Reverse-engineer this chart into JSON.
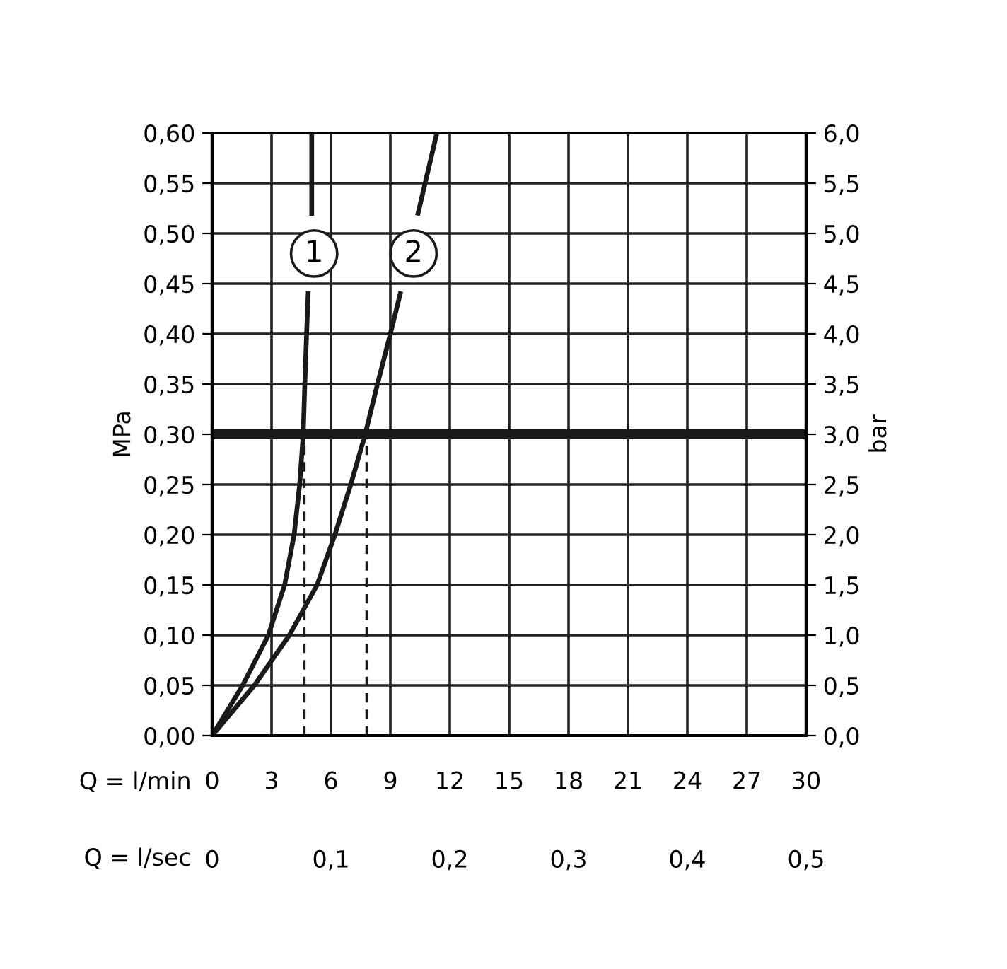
{
  "chart_data": {
    "type": "line",
    "x": [
      0,
      1.54,
      2.84,
      3.66,
      4.14,
      4.42,
      4.6,
      4.68,
      4.77,
      4.85,
      5.0,
      5.03,
      5.03
    ],
    "series": [
      {
        "name": null,
        "color": "#1a1a1a",
        "values": [
          0,
          0.05,
          0.1,
          0.15,
          0.2,
          0.25,
          0.3,
          0.35,
          0.4,
          0.44,
          null,
          0.52,
          0.6
        ]
      },
      {
        "name": null,
        "color": "#1a1a1a",
        "x": [
          0,
          2.13,
          3.9,
          5.3,
          6.2,
          7.0,
          7.73,
          8.35,
          9.0,
          9.5,
          10.0,
          10.4,
          11.35
        ],
        "values": [
          0,
          0.05,
          0.1,
          0.15,
          0.2,
          0.25,
          0.3,
          0.35,
          0.4,
          0.44,
          null,
          0.52,
          0.6
        ]
      }
    ],
    "xlabel": "Q = l/min",
    "x2label": "Q = l/sec",
    "ylabel": "MPa",
    "y2label": "bar",
    "xlim": [
      0,
      30
    ],
    "xticks": [
      0,
      3,
      6,
      9,
      12,
      15,
      18,
      21,
      24,
      27,
      30
    ],
    "x2lim": [
      0,
      0.5
    ],
    "x2ticks": [
      0,
      {
        "value": 0.1,
        "label": "0,1"
      },
      {
        "value": 0.2,
        "label": "0,2"
      },
      {
        "value": 0.3,
        "label": "0,3"
      },
      {
        "value": 0.4,
        "label": "0,4"
      },
      {
        "value": 0.5,
        "label": "0,5"
      }
    ],
    "ylim": [
      0,
      0.6
    ],
    "yticks": [
      {
        "value": 0,
        "label": "0,00"
      },
      {
        "value": 0.05,
        "label": "0,05"
      },
      {
        "value": 0.1,
        "label": "0,10"
      },
      {
        "value": 0.15,
        "label": "0,15"
      },
      {
        "value": 0.2,
        "label": "0,20"
      },
      {
        "value": 0.25,
        "label": "0,25"
      },
      {
        "value": 0.3,
        "label": "0,30"
      },
      {
        "value": 0.35,
        "label": "0,35"
      },
      {
        "value": 0.4,
        "label": "0,40"
      },
      {
        "value": 0.45,
        "label": "0,45"
      },
      {
        "value": 0.5,
        "label": "0,50"
      },
      {
        "value": 0.55,
        "label": "0,55"
      },
      {
        "value": 0.6,
        "label": "0,60"
      }
    ],
    "y2lim": [
      0,
      6
    ],
    "y2ticks": [
      {
        "value": 0,
        "label": "0,0"
      },
      {
        "value": 0.5,
        "label": "0,5"
      },
      {
        "value": 1,
        "label": "1,0"
      },
      {
        "value": 1.5,
        "label": "1,5"
      },
      {
        "value": 2,
        "label": "2,0"
      },
      {
        "value": 2.5,
        "label": "2,5"
      },
      {
        "value": 3,
        "label": "3,0"
      },
      {
        "value": 3.5,
        "label": "3,5"
      },
      {
        "value": 4,
        "label": "4,0"
      },
      {
        "value": 4.5,
        "label": "4,5"
      },
      {
        "value": 5,
        "label": "5,0"
      },
      {
        "value": 5.5,
        "label": "5,5"
      },
      {
        "value": 6,
        "label": "6,0"
      }
    ],
    "ref_lines": [
      {
        "axis": "y",
        "value": 0.3,
        "color": "#1a1a1a"
      },
      {
        "axis": "x",
        "value": 4.66,
        "color": "#1a1a1a",
        "line_style": "dashed"
      },
      {
        "axis": "x",
        "value": 7.8,
        "color": "#1a1a1a",
        "line_style": "dashed"
      }
    ],
    "annotations": [
      {
        "text": "1",
        "x": 5.15,
        "y": 0.48
      },
      {
        "text": "2",
        "x": 10.17,
        "y": 0.48
      }
    ],
    "grid": true,
    "legend": false,
    "line_style": "solid",
    "marker": "none"
  }
}
